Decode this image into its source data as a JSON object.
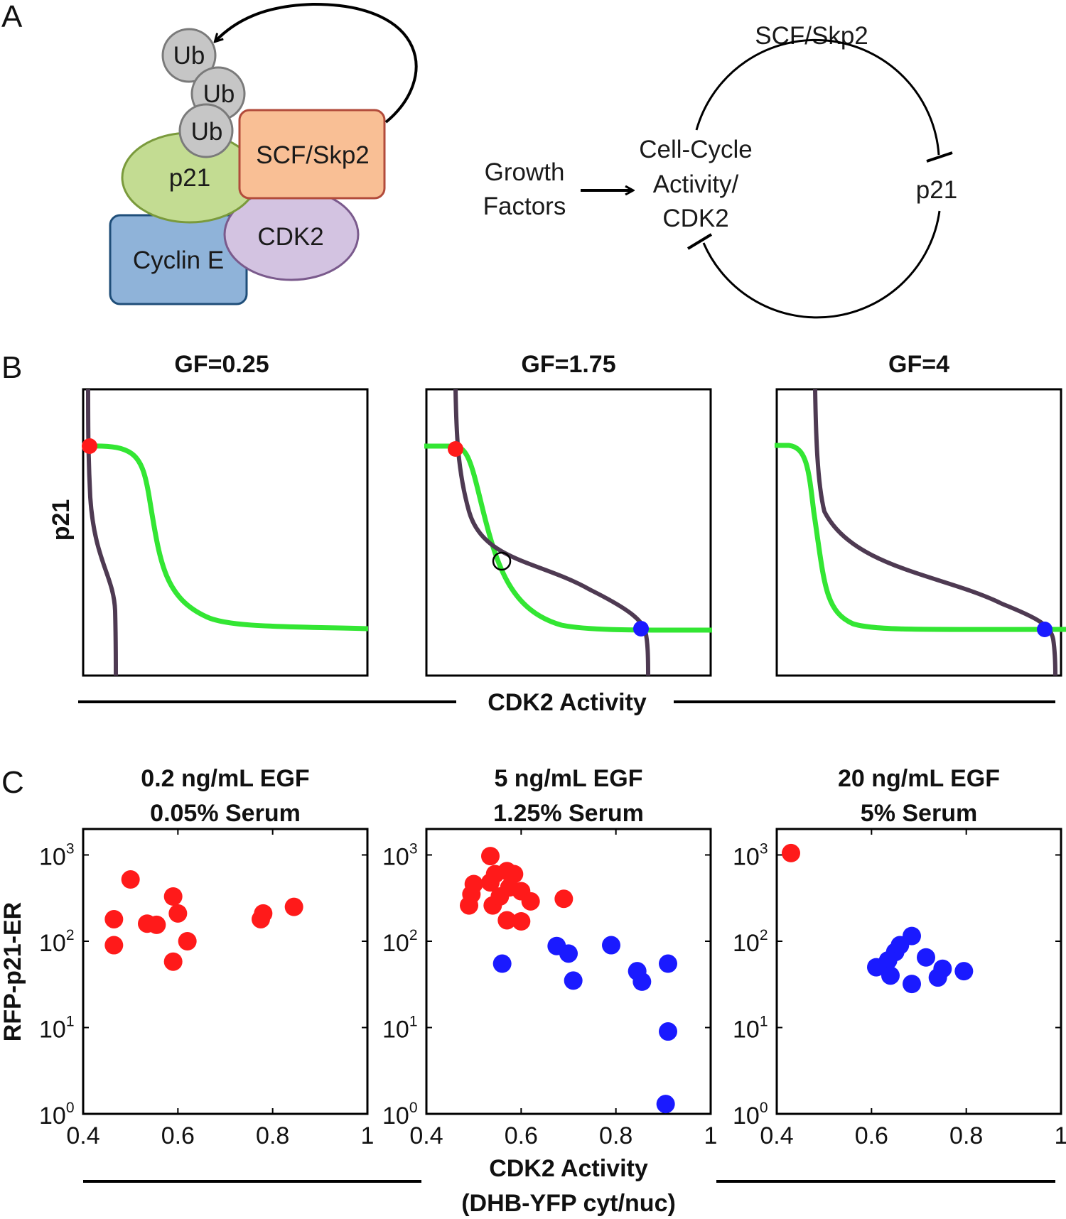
{
  "panel_a": {
    "letter": "A",
    "ub_labels": [
      "Ub",
      "Ub",
      "Ub"
    ],
    "p21_label": "p21",
    "scf_label": "SCF/Skp2",
    "cdk2_label": "CDK2",
    "cyclin_label": "Cyclin E",
    "colors": {
      "ub": "#c6c6c6",
      "p21": "#c3dc92",
      "scf": "#f9bf95",
      "cdk2": "#d3c3e1",
      "cyclin": "#8fb3d9"
    },
    "network": {
      "growth_factors_lines": [
        "Growth",
        "Factors"
      ],
      "cell_cycle_lines": [
        "Cell-Cycle",
        "Activity/",
        "CDK2"
      ],
      "scf_label": "SCF/Skp2",
      "p21_label": "p21"
    }
  },
  "panel_b": {
    "letter": "B",
    "ylabel": "p21",
    "xlabel": "CDK2 Activity",
    "colors": {
      "nullcline_green": "#33e633",
      "nullcline_purple": "#4e3a52",
      "stable_high_p21": "#ff1a1a",
      "stable_low_p21": "#1a1aff"
    },
    "plots": [
      {
        "title": "GF=0.25",
        "points": [
          {
            "type": "stable",
            "color": "red",
            "x": 0.02,
            "y": 0.8
          }
        ]
      },
      {
        "title": "GF=1.75",
        "points": [
          {
            "type": "stable",
            "color": "red",
            "x": 0.11,
            "y": 0.8
          },
          {
            "type": "unstable",
            "color": "none",
            "x": 0.27,
            "y": 0.4
          },
          {
            "type": "stable",
            "color": "blue",
            "x": 0.75,
            "y": 0.16
          }
        ]
      },
      {
        "title": "GF=4",
        "points": [
          {
            "type": "stable",
            "color": "blue",
            "x": 0.94,
            "y": 0.16
          }
        ]
      }
    ]
  },
  "chart_data": {
    "type": "scatter",
    "panel_letter": "C",
    "ylabel": "RFP-p21-ER",
    "xlabel_lines": [
      "CDK2 Activity",
      "(DHB-YFP cyt/nuc)"
    ],
    "xlim": [
      0.4,
      1
    ],
    "ylim_log10": [
      0,
      3.3
    ],
    "xticks": [
      "0.4",
      "0.6",
      "0.8",
      "1"
    ],
    "yticks": [
      {
        "base": "10",
        "exp": "0"
      },
      {
        "base": "10",
        "exp": "1"
      },
      {
        "base": "10",
        "exp": "2"
      },
      {
        "base": "10",
        "exp": "3"
      }
    ],
    "series_colors": {
      "red": "#ff1a1a",
      "blue": "#1a1aff"
    },
    "panels": [
      {
        "title_lines": [
          "0.2 ng/mL EGF",
          "0.05% Serum"
        ],
        "red": [
          [
            0.5,
            520
          ],
          [
            0.465,
            180
          ],
          [
            0.465,
            90
          ],
          [
            0.535,
            160
          ],
          [
            0.555,
            155
          ],
          [
            0.59,
            330
          ],
          [
            0.6,
            210
          ],
          [
            0.62,
            100
          ],
          [
            0.59,
            58
          ],
          [
            0.775,
            180
          ],
          [
            0.78,
            210
          ],
          [
            0.845,
            250
          ]
        ],
        "blue": []
      },
      {
        "title_lines": [
          "5 ng/mL EGF",
          "1.25% Serum"
        ],
        "red": [
          [
            0.535,
            970
          ],
          [
            0.5,
            460
          ],
          [
            0.495,
            350
          ],
          [
            0.49,
            260
          ],
          [
            0.535,
            480
          ],
          [
            0.545,
            600
          ],
          [
            0.57,
            650
          ],
          [
            0.585,
            600
          ],
          [
            0.54,
            260
          ],
          [
            0.555,
            330
          ],
          [
            0.575,
            420
          ],
          [
            0.6,
            380
          ],
          [
            0.62,
            290
          ],
          [
            0.57,
            175
          ],
          [
            0.6,
            170
          ],
          [
            0.69,
            310
          ]
        ],
        "blue": [
          [
            0.56,
            55
          ],
          [
            0.675,
            88
          ],
          [
            0.7,
            72
          ],
          [
            0.71,
            35
          ],
          [
            0.79,
            90
          ],
          [
            0.845,
            45
          ],
          [
            0.855,
            34
          ],
          [
            0.91,
            55
          ],
          [
            0.91,
            9
          ],
          [
            0.905,
            1.3
          ]
        ]
      },
      {
        "title_lines": [
          "20 ng/mL EGF",
          "5% Serum"
        ],
        "red": [
          [
            0.43,
            1050
          ]
        ],
        "blue": [
          [
            0.61,
            50
          ],
          [
            0.635,
            60
          ],
          [
            0.64,
            40
          ],
          [
            0.65,
            75
          ],
          [
            0.66,
            90
          ],
          [
            0.685,
            115
          ],
          [
            0.685,
            32
          ],
          [
            0.715,
            65
          ],
          [
            0.74,
            38
          ],
          [
            0.75,
            48
          ],
          [
            0.795,
            45
          ]
        ]
      }
    ]
  }
}
